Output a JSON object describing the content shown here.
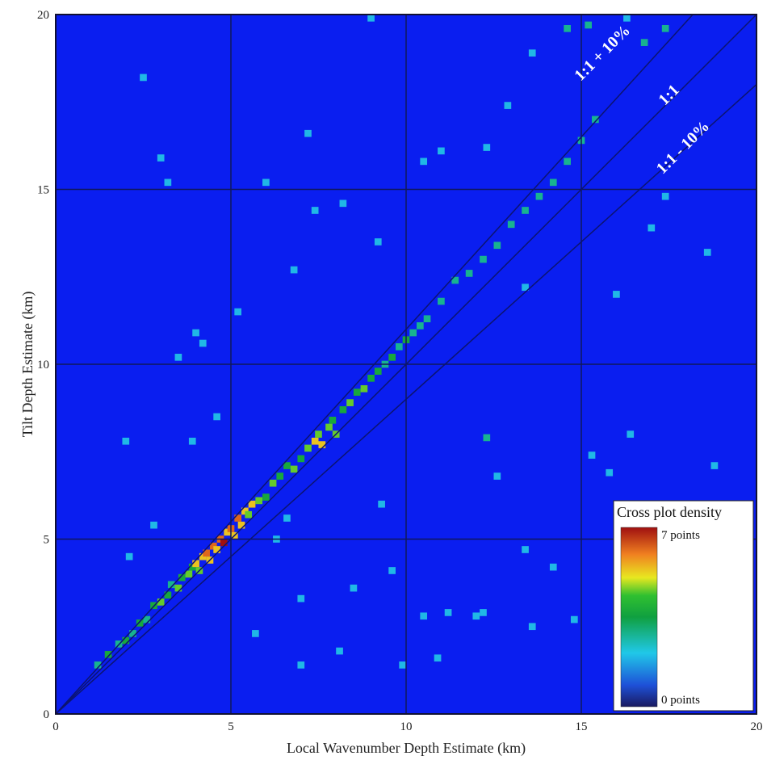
{
  "chart_data": {
    "type": "heatmap",
    "title": "",
    "xlabel": "Local Wavenumber Depth Estimate (km)",
    "ylabel": "Tilt Depth Estimate (km)",
    "xlim": [
      0,
      20
    ],
    "ylim": [
      0,
      20
    ],
    "xticks": [
      "0",
      "5",
      "10",
      "15",
      "20"
    ],
    "yticks": [
      "0",
      "5",
      "10",
      "15",
      "20"
    ],
    "grid": true,
    "background_color": "#0a1ef0",
    "reference_lines": [
      {
        "label": "1:1 + 10%",
        "slope": 1.1
      },
      {
        "label": "1:1",
        "slope": 1.0
      },
      {
        "label": "1:1 - 10%",
        "slope": 0.9
      }
    ],
    "colorbar": {
      "title": "Cross plot density",
      "min_label": "0 points",
      "max_label": "7 points",
      "min": 0,
      "max": 7,
      "colormap": "jet",
      "placement": "bottom-right"
    },
    "points": [
      [
        1.2,
        1.4,
        2
      ],
      [
        1.5,
        1.7,
        3
      ],
      [
        1.8,
        2.0,
        2
      ],
      [
        2.0,
        2.1,
        3
      ],
      [
        2.2,
        2.3,
        2
      ],
      [
        2.4,
        2.6,
        3
      ],
      [
        2.6,
        2.7,
        2
      ],
      [
        2.8,
        3.1,
        3
      ],
      [
        3.0,
        3.2,
        4
      ],
      [
        3.2,
        3.4,
        3
      ],
      [
        3.3,
        3.7,
        2
      ],
      [
        3.5,
        3.6,
        4
      ],
      [
        3.6,
        3.9,
        3
      ],
      [
        3.8,
        4.0,
        4
      ],
      [
        3.9,
        4.2,
        3
      ],
      [
        4.0,
        4.3,
        5
      ],
      [
        4.1,
        4.1,
        4
      ],
      [
        4.2,
        4.5,
        5
      ],
      [
        4.3,
        4.6,
        6
      ],
      [
        4.4,
        4.4,
        5
      ],
      [
        4.5,
        4.8,
        6
      ],
      [
        4.6,
        4.7,
        5
      ],
      [
        4.7,
        5.0,
        6
      ],
      [
        4.8,
        4.9,
        7
      ],
      [
        4.9,
        5.2,
        5
      ],
      [
        5.0,
        5.3,
        6
      ],
      [
        5.1,
        5.1,
        5
      ],
      [
        5.2,
        5.6,
        6
      ],
      [
        5.3,
        5.4,
        5
      ],
      [
        5.4,
        5.8,
        5
      ],
      [
        5.5,
        5.7,
        4
      ],
      [
        5.6,
        6.0,
        5
      ],
      [
        5.8,
        6.1,
        4
      ],
      [
        6.0,
        6.2,
        3
      ],
      [
        6.2,
        6.6,
        4
      ],
      [
        6.4,
        6.8,
        3
      ],
      [
        6.6,
        7.1,
        3
      ],
      [
        6.8,
        7.0,
        4
      ],
      [
        7.0,
        7.3,
        3
      ],
      [
        7.2,
        7.6,
        4
      ],
      [
        7.4,
        7.8,
        5
      ],
      [
        7.5,
        8.0,
        4
      ],
      [
        7.6,
        7.7,
        5
      ],
      [
        7.8,
        8.2,
        4
      ],
      [
        7.9,
        8.4,
        3
      ],
      [
        8.0,
        8.0,
        4
      ],
      [
        8.2,
        8.7,
        3
      ],
      [
        8.4,
        8.9,
        4
      ],
      [
        8.6,
        9.2,
        3
      ],
      [
        8.8,
        9.3,
        4
      ],
      [
        9.0,
        9.6,
        3
      ],
      [
        9.2,
        9.8,
        3
      ],
      [
        9.4,
        10.0,
        2
      ],
      [
        9.6,
        10.2,
        3
      ],
      [
        9.8,
        10.5,
        2
      ],
      [
        10.0,
        10.7,
        3
      ],
      [
        10.2,
        10.9,
        2
      ],
      [
        10.4,
        11.1,
        2
      ],
      [
        10.6,
        11.3,
        2
      ],
      [
        11.0,
        11.8,
        2
      ],
      [
        11.4,
        12.4,
        2
      ],
      [
        11.8,
        12.6,
        2
      ],
      [
        12.2,
        13.0,
        2
      ],
      [
        12.6,
        13.4,
        2
      ],
      [
        13.0,
        14.0,
        2
      ],
      [
        13.4,
        14.4,
        2
      ],
      [
        13.8,
        14.8,
        2
      ],
      [
        14.2,
        15.2,
        2
      ],
      [
        14.6,
        15.8,
        2
      ],
      [
        15.0,
        16.4,
        2
      ],
      [
        15.4,
        17.0,
        2
      ],
      [
        14.6,
        19.6,
        2
      ],
      [
        15.2,
        19.7,
        2
      ],
      [
        16.8,
        19.2,
        2
      ],
      [
        17.4,
        19.6,
        2
      ],
      [
        2.5,
        18.2,
        1
      ],
      [
        3.0,
        15.9,
        1
      ],
      [
        3.2,
        15.2,
        1
      ],
      [
        6.0,
        15.2,
        1
      ],
      [
        7.2,
        16.6,
        1
      ],
      [
        7.4,
        14.4,
        1
      ],
      [
        8.2,
        14.6,
        1
      ],
      [
        9.2,
        13.5,
        1
      ],
      [
        6.8,
        12.7,
        1
      ],
      [
        5.2,
        11.5,
        1
      ],
      [
        4.2,
        10.6,
        1
      ],
      [
        4.0,
        10.9,
        1
      ],
      [
        3.5,
        10.2,
        1
      ],
      [
        4.6,
        8.5,
        1
      ],
      [
        3.9,
        7.8,
        1
      ],
      [
        2.0,
        7.8,
        1
      ],
      [
        2.8,
        5.4,
        1
      ],
      [
        2.1,
        4.5,
        1
      ],
      [
        6.6,
        5.6,
        1
      ],
      [
        6.3,
        5.0,
        1
      ],
      [
        7.0,
        3.3,
        1
      ],
      [
        8.5,
        3.6,
        1
      ],
      [
        9.3,
        6.0,
        1
      ],
      [
        9.6,
        4.1,
        1
      ],
      [
        10.5,
        2.8,
        1
      ],
      [
        11.2,
        2.9,
        1
      ],
      [
        12.0,
        2.8,
        1
      ],
      [
        12.3,
        7.9,
        2
      ],
      [
        12.6,
        6.8,
        1
      ],
      [
        14.2,
        4.2,
        1
      ],
      [
        13.4,
        4.7,
        1
      ],
      [
        14.8,
        2.7,
        1
      ],
      [
        15.8,
        6.9,
        1
      ],
      [
        15.3,
        7.4,
        1
      ],
      [
        16.4,
        8.0,
        1
      ],
      [
        16.0,
        12.0,
        1
      ],
      [
        17.0,
        13.9,
        1
      ],
      [
        17.4,
        14.8,
        1
      ],
      [
        18.6,
        13.2,
        1
      ],
      [
        18.8,
        7.1,
        1
      ],
      [
        12.2,
        2.9,
        1
      ],
      [
        13.6,
        2.5,
        1
      ],
      [
        9.9,
        1.4,
        1
      ],
      [
        10.9,
        1.6,
        1
      ],
      [
        7.0,
        1.4,
        1
      ],
      [
        8.1,
        1.8,
        1
      ],
      [
        5.7,
        2.3,
        1
      ],
      [
        12.3,
        16.2,
        1
      ],
      [
        12.9,
        17.4,
        1
      ],
      [
        11.0,
        16.1,
        1
      ],
      [
        10.5,
        15.8,
        1
      ],
      [
        13.6,
        18.9,
        1
      ],
      [
        16.3,
        19.9,
        1
      ],
      [
        9.0,
        19.9,
        1
      ],
      [
        13.4,
        12.2,
        1
      ]
    ]
  }
}
